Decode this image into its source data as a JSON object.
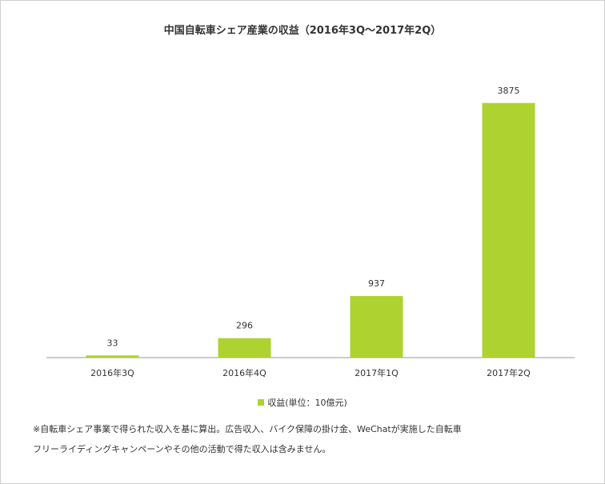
{
  "chart_data": {
    "type": "bar",
    "title": "中国自転車シェア産業の収益（2016年3Q～2017年2Q）",
    "categories": [
      "2016年3Q",
      "2016年4Q",
      "2017年1Q",
      "2017年2Q"
    ],
    "series": [
      {
        "name": "収益(単位：10億元)",
        "values": [
          33,
          296,
          937,
          3875
        ],
        "color": "#aed22f"
      }
    ],
    "data_labels": [
      "33",
      "296",
      "937",
      "3875"
    ],
    "xlabel": "",
    "ylabel": "",
    "ylim": [
      0,
      4700
    ],
    "grid": false,
    "legend_position": "bottom"
  },
  "notes": {
    "line1": "※自転車シェア事業で得られた収入を基に算出。広告収入、バイク保障の掛け金、WeChatが実施した自転車",
    "line2": "フリーライディングキャンペーンやその他の活動で得た収入は含みません。"
  }
}
